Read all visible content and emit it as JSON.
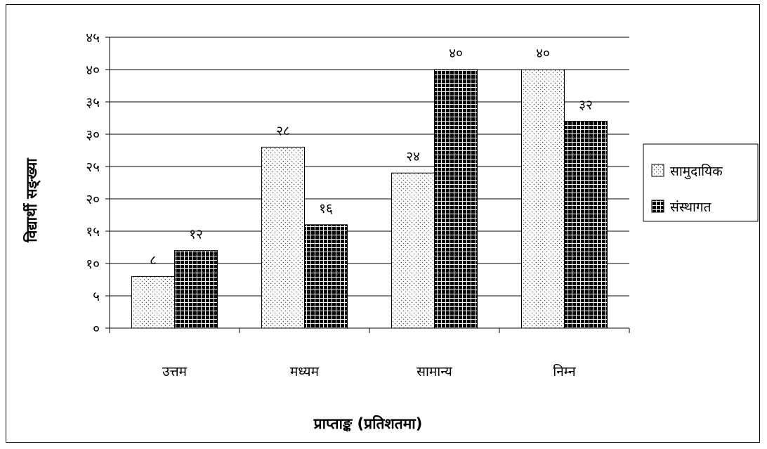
{
  "chart_data": {
    "type": "bar",
    "ylabel": "विद्यार्थी सङ्ख्या",
    "xlabel": "प्राप्ताङ्क (प्रतिशतमा)",
    "categories": [
      "उत्तम",
      "मध्यम",
      "सामान्य",
      "निम्न"
    ],
    "ylim": [
      0,
      45
    ],
    "yticks": [
      0,
      5,
      10,
      15,
      20,
      25,
      30,
      35,
      40,
      45
    ],
    "ytick_labels": [
      "०",
      "५",
      "१०",
      "१५",
      "२०",
      "२५",
      "३०",
      "३५",
      "४०",
      "४५"
    ],
    "grid": true,
    "legend_position": "right",
    "series": [
      {
        "name": "सामुदायिक",
        "values": [
          8,
          28,
          24,
          40
        ],
        "data_labels": [
          "८",
          "२८",
          "२४",
          "४०"
        ],
        "pattern": "dots"
      },
      {
        "name": "संस्थागत",
        "values": [
          12,
          16,
          40,
          32
        ],
        "data_labels": [
          "१२",
          "१६",
          "४०",
          "३२"
        ],
        "pattern": "checker"
      }
    ]
  }
}
